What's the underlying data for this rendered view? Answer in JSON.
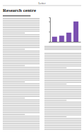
{
  "header": {
    "section": "Letter"
  },
  "title": "Research centre",
  "chart_data": {
    "type": "bar",
    "categories": [
      null,
      null,
      null,
      null
    ],
    "values": [
      0.25,
      0.3,
      0.45,
      1.0
    ],
    "color": "#7a4fb0",
    "ylim": [
      0,
      1.2
    ],
    "yticks": [
      0,
      0.5,
      1
    ],
    "tick_labels": false,
    "grid": false
  }
}
